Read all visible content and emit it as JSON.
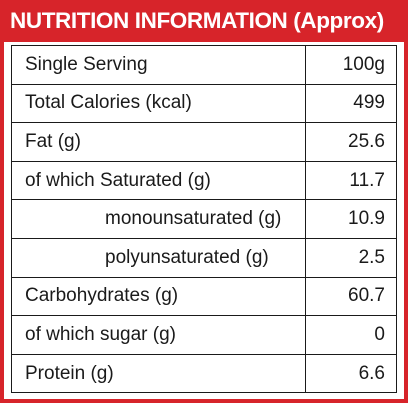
{
  "header": {
    "title": "NUTRITION INFORMATION (Approx)",
    "accent_color": "#d7242a"
  },
  "rows": [
    {
      "label": "Single Serving",
      "value": "100g",
      "indent": false
    },
    {
      "label": "Total Calories (kcal)",
      "value": "499",
      "indent": false
    },
    {
      "label": "Fat (g)",
      "value": "25.6",
      "indent": false
    },
    {
      "label": "of which Saturated (g)",
      "value": "11.7",
      "indent": false
    },
    {
      "label": "monounsaturated (g)",
      "value": "10.9",
      "indent": true
    },
    {
      "label": "polyunsaturated (g)",
      "value": "2.5",
      "indent": true
    },
    {
      "label": "Carbohydrates (g)",
      "value": "60.7",
      "indent": false
    },
    {
      "label": "of which sugar (g)",
      "value": "0",
      "indent": false
    },
    {
      "label": "Protein (g)",
      "value": "6.6",
      "indent": false
    }
  ]
}
